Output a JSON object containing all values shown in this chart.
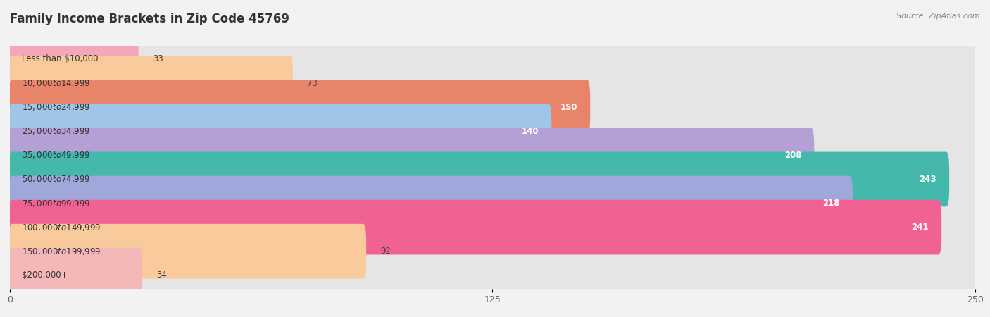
{
  "title": "Family Income Brackets in Zip Code 45769",
  "source": "Source: ZipAtlas.com",
  "categories": [
    "Less than $10,000",
    "$10,000 to $14,999",
    "$15,000 to $24,999",
    "$25,000 to $34,999",
    "$35,000 to $49,999",
    "$50,000 to $74,999",
    "$75,000 to $99,999",
    "$100,000 to $149,999",
    "$150,000 to $199,999",
    "$200,000+"
  ],
  "values": [
    33,
    73,
    150,
    140,
    208,
    243,
    218,
    241,
    92,
    34
  ],
  "bar_colors": [
    "#f4a7b9",
    "#f9cb9c",
    "#e8846a",
    "#9fc5e8",
    "#b4a0d4",
    "#45b8ac",
    "#9fa8da",
    "#f06292",
    "#f9cb9c",
    "#f4b8b8"
  ],
  "xlim": [
    0,
    250
  ],
  "xticks": [
    0,
    125,
    250
  ],
  "bg_color": "#f2f2f2",
  "row_bg_color": "#ffffff",
  "bar_bg_color": "#e5e5e5",
  "title_fontsize": 12,
  "source_fontsize": 8,
  "label_fontsize": 8.5,
  "value_fontsize": 8.5,
  "white_text_threshold": 120
}
